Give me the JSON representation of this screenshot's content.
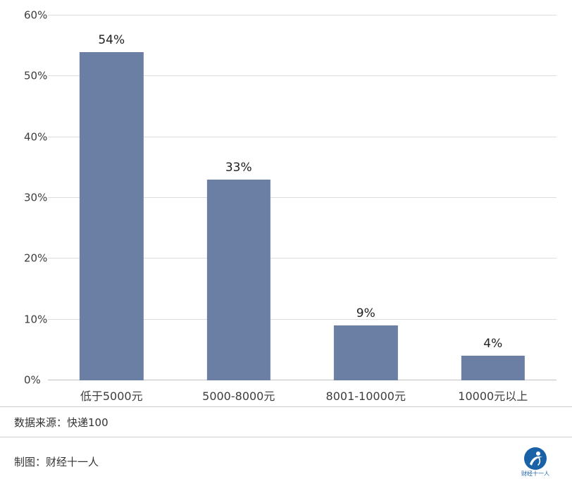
{
  "chart_data": {
    "type": "bar",
    "title": "",
    "xlabel": "",
    "ylabel": "",
    "categories": [
      "低于5000元",
      "5000-8000元",
      "8001-10000元",
      "10000元以上"
    ],
    "values": [
      54,
      33,
      9,
      4
    ],
    "value_labels": [
      "54%",
      "33%",
      "9%",
      "4%"
    ],
    "ylim": [
      0,
      60
    ],
    "ytick_values": [
      0,
      10,
      20,
      30,
      40,
      50,
      60
    ],
    "ytick_labels": [
      "0%",
      "10%",
      "20%",
      "30%",
      "40%",
      "50%",
      "60%"
    ],
    "grid": true,
    "legend": "none",
    "bar_color": "#6b7fa4"
  },
  "footer": {
    "source": "数据来源：快递100",
    "credit": "制图：财经十一人",
    "logo_text": "财经十一人"
  },
  "colors": {
    "background": "#ffffff",
    "bar": "#6b7fa4",
    "gridline": "#dcdcdc",
    "baseline": "#c2c2c2",
    "text": "#333333",
    "divider": "#cdcdcd",
    "logo_blue": "#1a62a8"
  }
}
